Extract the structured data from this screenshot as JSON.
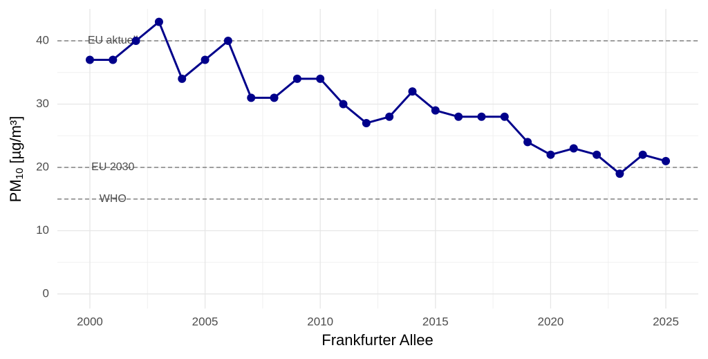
{
  "chart_data": {
    "type": "line",
    "x_label": "Frankfurter Allee",
    "y_label": {
      "main": "PM",
      "sub": "10",
      "unit": " [µg/m³]"
    },
    "x": [
      2000,
      2001,
      2002,
      2003,
      2004,
      2005,
      2006,
      2007,
      2008,
      2009,
      2010,
      2011,
      2012,
      2013,
      2014,
      2015,
      2016,
      2017,
      2018,
      2019,
      2020,
      2021,
      2022,
      2023,
      2024,
      2025
    ],
    "series": [
      {
        "color": "#00008b",
        "values": [
          37,
          37,
          40,
          43,
          34,
          37,
          40,
          31,
          31,
          34,
          34,
          30,
          27,
          28,
          32,
          29,
          28,
          28,
          28,
          24,
          22,
          23,
          22,
          19,
          22,
          21
        ]
      }
    ],
    "reference_lines": [
      {
        "value": 40,
        "label": "EU aktuell"
      },
      {
        "value": 20,
        "label": "EU 2030"
      },
      {
        "value": 15,
        "label": "WHO"
      }
    ],
    "reference_label_x": 2001,
    "reference_color": "#808080",
    "xlim": [
      1998.59,
      2026.41
    ],
    "ylim": [
      -2.3,
      45.03
    ],
    "xticks": [
      2000,
      2005,
      2010,
      2015,
      2020,
      2025
    ],
    "yticks": [
      0,
      10,
      20,
      30,
      40
    ],
    "xminor": [
      2002.5,
      2007.5,
      2012.5,
      2017.5,
      2022.5
    ],
    "yminor": [
      5,
      15,
      25,
      35
    ],
    "grid": true
  }
}
